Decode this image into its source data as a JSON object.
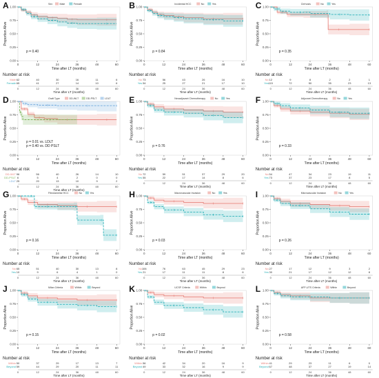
{
  "figure": {
    "xlabel": "Time after LT (months)",
    "ylabel": "Proportion Alive",
    "risk_title": "Number at risk",
    "xticks": [
      0,
      12,
      24,
      36,
      48,
      60
    ],
    "yticks": [
      "0.00",
      "0.25",
      "0.50",
      "0.75",
      "1.00"
    ]
  },
  "colors": {
    "red": "#e8837c",
    "teal": "#2ab0b8",
    "green": "#7db35a",
    "blue": "#6fa8dc",
    "band_red": "#f4b5b0",
    "band_teal": "#9fd9dd"
  },
  "chart_data": [
    {
      "letter": "A",
      "type": "line",
      "legend_title": "Sex",
      "legend": [
        "Male",
        "Female"
      ],
      "series": [
        {
          "name": "Male",
          "color": "red",
          "x": [
            0,
            2,
            5,
            8,
            12,
            18,
            24,
            30,
            36,
            48,
            60
          ],
          "y": [
            1,
            0.94,
            0.9,
            0.85,
            0.82,
            0.8,
            0.79,
            0.77,
            0.76,
            0.76,
            0.76
          ]
        },
        {
          "name": "Female",
          "color": "teal",
          "x": [
            0,
            2,
            5,
            8,
            12,
            18,
            24,
            30,
            36,
            48,
            60
          ],
          "y": [
            1,
            0.95,
            0.88,
            0.82,
            0.78,
            0.75,
            0.72,
            0.7,
            0.69,
            0.69,
            0.69
          ]
        }
      ],
      "pvalues": [
        "p = 0.40"
      ],
      "risk": [
        {
          "label": "Male",
          "color": "red",
          "values": [
            "62",
            "40",
            "30",
            "16",
            "11",
            "6"
          ]
        },
        {
          "label": "Female",
          "color": "teal",
          "values": [
            "65",
            "41",
            "27",
            "14",
            "10",
            "6"
          ]
        }
      ]
    },
    {
      "letter": "B",
      "type": "line",
      "legend_title": "Incidental HCC",
      "legend": [
        "No",
        "Yes"
      ],
      "series": [
        {
          "name": "No",
          "color": "red",
          "x": [
            0,
            2,
            5,
            8,
            12,
            18,
            24,
            36,
            48,
            60
          ],
          "y": [
            1,
            0.95,
            0.9,
            0.86,
            0.84,
            0.82,
            0.8,
            0.78,
            0.78,
            0.78
          ]
        },
        {
          "name": "Yes",
          "color": "teal",
          "x": [
            0,
            2,
            5,
            8,
            12,
            18,
            24,
            36,
            48,
            60
          ],
          "y": [
            1,
            0.93,
            0.88,
            0.84,
            0.82,
            0.8,
            0.78,
            0.76,
            0.74,
            0.74
          ]
        }
      ],
      "pvalues": [
        "p = 0.84"
      ],
      "risk": [
        {
          "label": "No",
          "color": "red",
          "values": [
            "73",
            "56",
            "43",
            "26",
            "16",
            "10"
          ]
        },
        {
          "label": "Yes",
          "color": "teal",
          "values": [
            "54",
            "25",
            "27",
            "21",
            "17",
            "10"
          ]
        }
      ]
    },
    {
      "letter": "C",
      "type": "line",
      "legend_title": "Cirrhosis",
      "legend": [
        "No",
        "Yes"
      ],
      "series": [
        {
          "name": "No",
          "color": "red",
          "x": [
            0,
            4,
            10,
            20,
            34,
            35,
            48,
            60
          ],
          "y": [
            1,
            0.9,
            0.86,
            0.86,
            0.86,
            0.58,
            0.58,
            0.58
          ]
        },
        {
          "name": "Yes",
          "color": "teal",
          "x": [
            0,
            2,
            6,
            12,
            24,
            36,
            48,
            60
          ],
          "y": [
            1,
            0.96,
            0.92,
            0.9,
            0.88,
            0.86,
            0.85,
            0.85
          ]
        }
      ],
      "pvalues": [
        "p = 0.35"
      ],
      "risk": [
        {
          "label": "No",
          "color": "red",
          "values": [
            "12",
            "9",
            "8",
            "2",
            "2",
            "1"
          ]
        },
        {
          "label": "Yes",
          "color": "teal",
          "values": [
            "115",
            "72",
            "50",
            "35",
            "23",
            "13"
          ]
        }
      ]
    },
    {
      "letter": "D",
      "type": "line",
      "legend_title": "Graft Type",
      "legend": [
        "DD-WLT",
        "DD-PSLT",
        "LDLT"
      ],
      "series": [
        {
          "name": "DD-WLT",
          "color": "red",
          "x": [
            0,
            2,
            6,
            10,
            16,
            24,
            36,
            48,
            60
          ],
          "y": [
            1,
            0.86,
            0.76,
            0.7,
            0.68,
            0.66,
            0.66,
            0.66,
            0.66
          ]
        },
        {
          "name": "DD-PSLT",
          "color": "green",
          "x": [
            0,
            1,
            2,
            3,
            36
          ],
          "y": [
            1,
            0.8,
            0.72,
            0.66,
            0.66
          ]
        },
        {
          "name": "LDLT",
          "color": "blue",
          "x": [
            0,
            3,
            6,
            12,
            24,
            36,
            48,
            60
          ],
          "y": [
            1,
            0.96,
            0.94,
            0.93,
            0.92,
            0.92,
            0.92,
            0.92
          ]
        }
      ],
      "pvalues": [
        "p = 0.01 vs. LDLT",
        "p = 0.40 vs. DD PSLT"
      ],
      "risk": [
        {
          "label": "DD-WLT",
          "color": "red",
          "values": [
            "96",
            "56",
            "40",
            "26",
            "14",
            "10"
          ]
        },
        {
          "label": "DD-PSLT",
          "color": "green",
          "values": [
            "6",
            "5",
            "4",
            "2",
            "0",
            "0"
          ]
        },
        {
          "label": "LDLT",
          "color": "blue",
          "values": [
            "25",
            "20",
            "13",
            "10",
            "9",
            "2"
          ]
        }
      ]
    },
    {
      "letter": "E",
      "type": "line",
      "legend_title": "Neoadjuvant Chemotherapy",
      "legend": [
        "No",
        "Yes"
      ],
      "series": [
        {
          "name": "No",
          "color": "red",
          "x": [
            0,
            2,
            6,
            12,
            24,
            36,
            48,
            60
          ],
          "y": [
            1,
            0.95,
            0.9,
            0.86,
            0.84,
            0.82,
            0.8,
            0.8
          ]
        },
        {
          "name": "Yes",
          "color": "teal",
          "x": [
            0,
            2,
            6,
            12,
            24,
            36,
            48,
            60
          ],
          "y": [
            1,
            0.92,
            0.84,
            0.8,
            0.78,
            0.74,
            0.7,
            0.7
          ]
        }
      ],
      "pvalues": [
        "p = 0.76"
      ],
      "risk": [
        {
          "label": "No",
          "color": "red",
          "values": [
            "72",
            "59",
            "51",
            "37",
            "29",
            "20"
          ]
        },
        {
          "label": "Yes",
          "color": "teal",
          "values": [
            "55",
            "22",
            "17",
            "14",
            "8",
            "6"
          ]
        }
      ]
    },
    {
      "letter": "F",
      "type": "line",
      "legend_title": "Adjuvant Chemotherapy",
      "legend": [
        "No",
        "Yes"
      ],
      "series": [
        {
          "name": "No",
          "color": "red",
          "x": [
            0,
            2,
            6,
            12,
            24,
            36,
            48,
            60
          ],
          "y": [
            1,
            0.92,
            0.86,
            0.82,
            0.8,
            0.78,
            0.76,
            0.76
          ]
        },
        {
          "name": "Yes",
          "color": "teal",
          "x": [
            0,
            2,
            6,
            12,
            24,
            36,
            48,
            60
          ],
          "y": [
            1,
            0.96,
            0.92,
            0.88,
            0.84,
            0.8,
            0.78,
            0.78
          ]
        }
      ],
      "pvalues": [
        "p = 0.33"
      ],
      "risk": [
        {
          "label": "No",
          "color": "red",
          "values": [
            "54",
            "47",
            "34",
            "23",
            "19",
            "11"
          ]
        },
        {
          "label": "Yes",
          "color": "teal",
          "values": [
            "73",
            "37",
            "23",
            "17",
            "8",
            "5"
          ]
        }
      ]
    },
    {
      "letter": "G",
      "type": "line",
      "legend_title": "Fibrolamellar HCC",
      "legend": [
        "No",
        "Yes"
      ],
      "series": [
        {
          "name": "No",
          "color": "red",
          "x": [
            0,
            2,
            6,
            12,
            24,
            36,
            48,
            60
          ],
          "y": [
            1,
            0.94,
            0.88,
            0.84,
            0.82,
            0.8,
            0.8,
            0.8
          ]
        },
        {
          "name": "Yes",
          "color": "teal",
          "x": [
            0,
            6,
            10,
            12,
            24,
            34,
            36,
            50,
            52,
            60
          ],
          "y": [
            1,
            1,
            0.8,
            0.8,
            0.8,
            0.8,
            0.55,
            0.55,
            0.27,
            0.27
          ]
        }
      ],
      "pvalues": [
        "p = 0.16"
      ],
      "risk": [
        {
          "label": "No",
          "color": "red",
          "values": [
            "65",
            "51",
            "40",
            "30",
            "13",
            "8"
          ]
        },
        {
          "label": "Yes",
          "color": "teal",
          "values": [
            "10",
            "9",
            "6",
            "4",
            "1",
            "0"
          ]
        }
      ]
    },
    {
      "letter": "H",
      "type": "line",
      "legend_title": "Macrovascular Invasion",
      "legend": [
        "No",
        "Yes"
      ],
      "series": [
        {
          "name": "No",
          "color": "red",
          "x": [
            0,
            2,
            6,
            12,
            24,
            36,
            48,
            60
          ],
          "y": [
            1,
            0.96,
            0.92,
            0.9,
            0.88,
            0.86,
            0.86,
            0.86
          ]
        },
        {
          "name": "Yes",
          "color": "teal",
          "x": [
            0,
            2,
            6,
            12,
            24,
            36,
            48,
            60
          ],
          "y": [
            1,
            0.88,
            0.8,
            0.74,
            0.7,
            0.65,
            0.62,
            0.62
          ]
        }
      ],
      "pvalues": [
        "p = 0.03"
      ],
      "risk": [
        {
          "label": "No",
          "color": "red",
          "values": [
            "106",
            "76",
            "63",
            "45",
            "29",
            "23"
          ]
        },
        {
          "label": "Yes",
          "color": "teal",
          "values": [
            "21",
            "17",
            "11",
            "11",
            "8",
            "6"
          ]
        }
      ]
    },
    {
      "letter": "I",
      "type": "line",
      "legend_title": "Microvascular Invasion",
      "legend": [
        "No",
        "Yes"
      ],
      "series": [
        {
          "name": "No",
          "color": "red",
          "x": [
            0,
            2,
            6,
            12,
            24,
            36,
            48,
            60
          ],
          "y": [
            1,
            0.95,
            0.9,
            0.86,
            0.84,
            0.82,
            0.8,
            0.8
          ]
        },
        {
          "name": "Yes",
          "color": "teal",
          "x": [
            0,
            2,
            6,
            12,
            24,
            36,
            48,
            60
          ],
          "y": [
            1,
            0.92,
            0.86,
            0.82,
            0.76,
            0.7,
            0.66,
            0.66
          ]
        }
      ],
      "pvalues": [
        "p = 0.26"
      ],
      "risk": [
        {
          "label": "No",
          "color": "red",
          "values": [
            "27",
            "17",
            "12",
            "9",
            "3",
            "2"
          ]
        },
        {
          "label": "Yes",
          "color": "teal",
          "values": [
            "30",
            "21",
            "17",
            "12",
            "12",
            "8"
          ]
        }
      ]
    },
    {
      "letter": "J",
      "type": "line",
      "legend_title": "Milan Criteria",
      "legend": [
        "Within",
        "Beyond"
      ],
      "series": [
        {
          "name": "Within",
          "color": "red",
          "x": [
            0,
            2,
            6,
            12,
            24,
            36,
            48,
            60
          ],
          "y": [
            1,
            0.95,
            0.9,
            0.86,
            0.84,
            0.82,
            0.82,
            0.82
          ]
        },
        {
          "name": "Beyond",
          "color": "teal",
          "x": [
            0,
            2,
            6,
            12,
            24,
            36,
            48,
            60
          ],
          "y": [
            1,
            0.92,
            0.84,
            0.78,
            0.74,
            0.72,
            0.7,
            0.7
          ]
        }
      ],
      "pvalues": [
        "p = 0.15"
      ],
      "risk": [
        {
          "label": "Within",
          "color": "red",
          "values": [
            "50",
            "37",
            "29",
            "17",
            "13",
            "7"
          ]
        },
        {
          "label": "Beyond",
          "color": "teal",
          "values": [
            "59",
            "44",
            "29",
            "20",
            "11",
            "11"
          ]
        }
      ]
    },
    {
      "letter": "K",
      "type": "line",
      "legend_title": "UCSF Criteria",
      "legend": [
        "Within",
        "Beyond"
      ],
      "series": [
        {
          "name": "Within",
          "color": "red",
          "x": [
            0,
            2,
            6,
            12,
            24,
            36,
            48,
            60
          ],
          "y": [
            1,
            0.96,
            0.92,
            0.9,
            0.88,
            0.86,
            0.86,
            0.86
          ]
        },
        {
          "name": "Beyond",
          "color": "teal",
          "x": [
            0,
            2,
            6,
            12,
            24,
            36,
            48,
            60
          ],
          "y": [
            1,
            0.88,
            0.78,
            0.72,
            0.68,
            0.64,
            0.6,
            0.6
          ]
        }
      ],
      "pvalues": [
        "p = 0.02"
      ],
      "risk": [
        {
          "label": "Within",
          "color": "red",
          "values": [
            "56",
            "42",
            "34",
            "20",
            "16",
            "9"
          ]
        },
        {
          "label": "Beyond",
          "color": "teal",
          "values": [
            "49",
            "33",
            "32",
            "16",
            "9",
            "9"
          ]
        }
      ]
    },
    {
      "letter": "L",
      "type": "line",
      "legend_title": "AFP-UTS Criteria",
      "legend": [
        "Within",
        "Beyond"
      ],
      "series": [
        {
          "name": "Within",
          "color": "red",
          "x": [
            0,
            2,
            6,
            12,
            24,
            36,
            48,
            60
          ],
          "y": [
            1,
            0.96,
            0.92,
            0.9,
            0.86,
            0.86,
            0.86,
            0.86
          ]
        },
        {
          "name": "Beyond",
          "color": "teal",
          "x": [
            0,
            2,
            6,
            12,
            24,
            36,
            48,
            60
          ],
          "y": [
            1,
            0.94,
            0.9,
            0.88,
            0.88,
            0.86,
            0.86,
            0.86
          ]
        }
      ],
      "pvalues": [
        "p = 0.58"
      ],
      "risk": [
        {
          "label": "Within",
          "color": "red",
          "values": [
            "41",
            "29",
            "23",
            "11",
            "6",
            "0"
          ]
        },
        {
          "label": "Beyond",
          "color": "teal",
          "values": [
            "67",
            "48",
            "37",
            "27",
            "19",
            "14"
          ]
        }
      ]
    }
  ]
}
